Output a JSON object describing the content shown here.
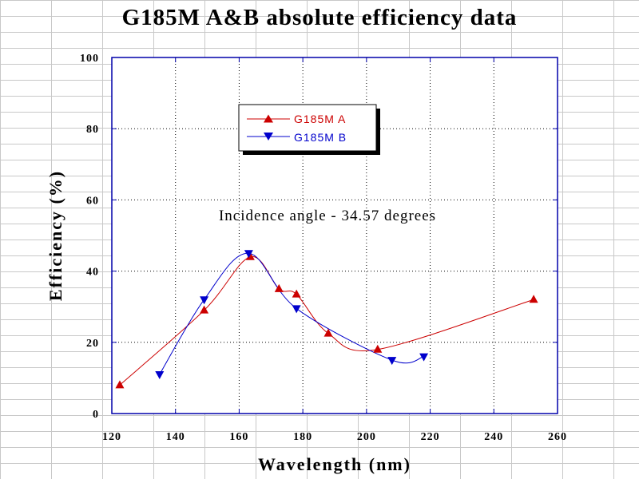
{
  "chart_data": {
    "type": "line",
    "title": "G185M A&B absolute efficiency data",
    "xlabel": "Wavelength (nm)",
    "ylabel": "Efficiency (%)",
    "xlim": [
      120,
      260
    ],
    "ylim": [
      0,
      100
    ],
    "xticks": [
      "120",
      "140",
      "160",
      "180",
      "200",
      "220",
      "240",
      "260"
    ],
    "yticks": [
      "0",
      "20",
      "40",
      "60",
      "80",
      "100"
    ],
    "grid": true,
    "annotation": "Incidence angle - 34.57 degrees",
    "legend_position": "top-left",
    "series": [
      {
        "name": "G185M A",
        "color": "#cc0000",
        "marker": "triangle-up",
        "points": [
          [
            122.5,
            8
          ],
          [
            149,
            29
          ],
          [
            163.5,
            44
          ],
          [
            172.5,
            35
          ],
          [
            178,
            33.5
          ],
          [
            188,
            22.5
          ],
          [
            203.5,
            18
          ],
          [
            252.5,
            32
          ]
        ]
      },
      {
        "name": "G185M B",
        "color": "#0000cc",
        "marker": "triangle-down",
        "points": [
          [
            135,
            11
          ],
          [
            149,
            32
          ],
          [
            163,
            45
          ],
          [
            178,
            29.5
          ],
          [
            208,
            15
          ],
          [
            218,
            16
          ]
        ]
      }
    ]
  }
}
